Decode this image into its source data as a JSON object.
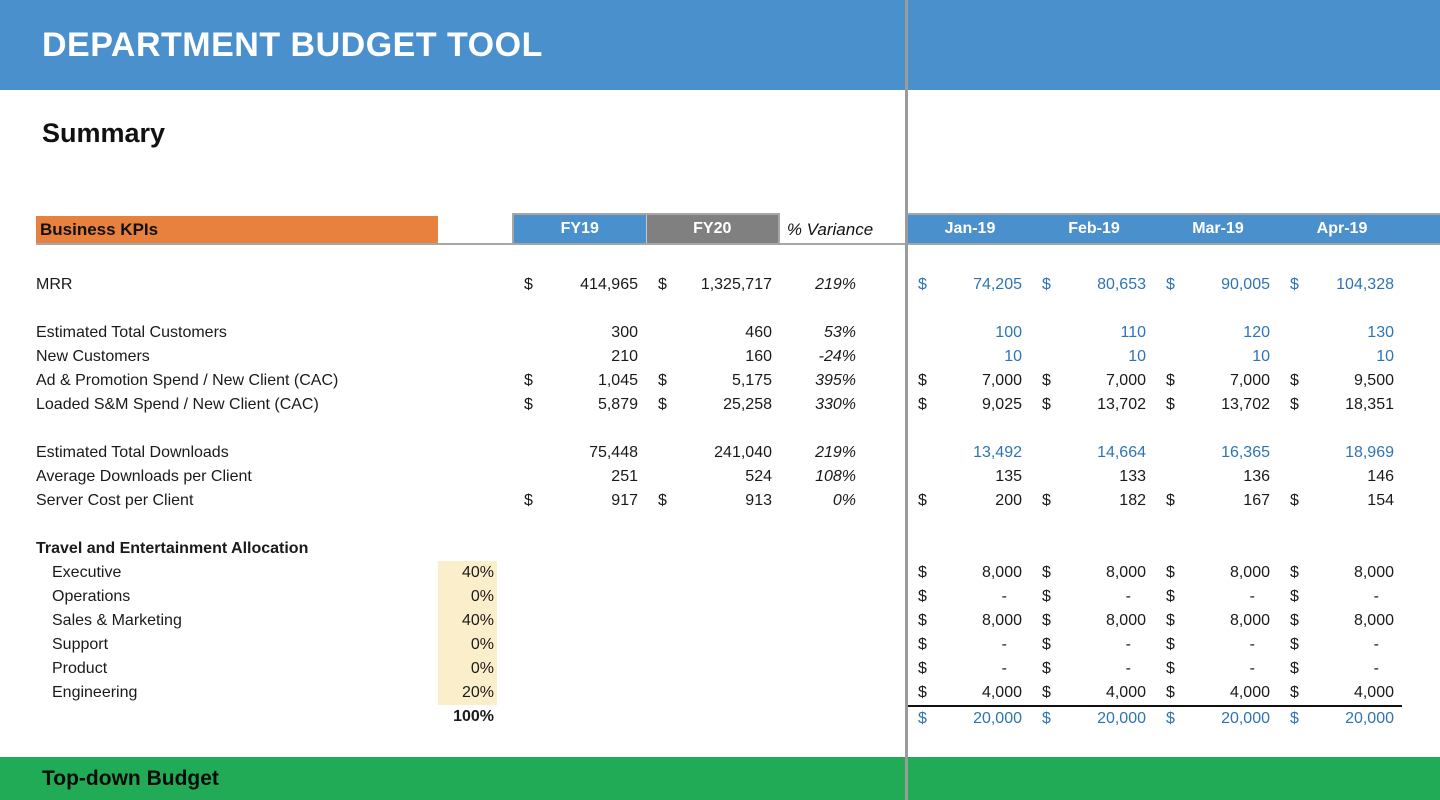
{
  "header": {
    "title": "DEPARTMENT BUDGET TOOL"
  },
  "summary": {
    "title": "Summary"
  },
  "footer": {
    "title": "Top-down Budget"
  },
  "colors": {
    "header_blue": "#4a90cd",
    "section_orange": "#e8813d",
    "fy20_gray": "#808080",
    "footer_green": "#21ab56",
    "value_blue": "#2e74b5",
    "allocation_cell_bg": "#fbeecb"
  },
  "table": {
    "section_label": "Business KPIs",
    "col_fy19": "FY19",
    "col_fy20": "FY20",
    "col_variance": "% Variance",
    "months": [
      "Jan-19",
      "Feb-19",
      "Mar-19",
      "Apr-19"
    ],
    "rows": [
      {
        "id": "mrr",
        "label": "MRR",
        "fy19": [
          "$",
          "414,965"
        ],
        "fy20": [
          "$",
          "1,325,717"
        ],
        "variance": "219%",
        "months": [
          [
            "$",
            "74,205"
          ],
          [
            "$",
            "80,653"
          ],
          [
            "$",
            "90,005"
          ],
          [
            "$",
            "104,328"
          ]
        ],
        "month_color": "blue"
      },
      {
        "id": "estimated-total-customers",
        "label": "Estimated Total Customers",
        "gap_before": true,
        "fy19": [
          "",
          "300"
        ],
        "fy20": [
          "",
          "460"
        ],
        "variance": "53%",
        "months": [
          [
            "",
            "100"
          ],
          [
            "",
            "110"
          ],
          [
            "",
            "120"
          ],
          [
            "",
            "130"
          ]
        ],
        "month_color": "blue"
      },
      {
        "id": "new-customers",
        "label": "New Customers",
        "fy19": [
          "",
          "210"
        ],
        "fy20": [
          "",
          "160"
        ],
        "variance": "-24%",
        "months": [
          [
            "",
            "10"
          ],
          [
            "",
            "10"
          ],
          [
            "",
            "10"
          ],
          [
            "",
            "10"
          ]
        ],
        "month_color": "blue"
      },
      {
        "id": "ad-promotion-spend-cac",
        "label": "Ad & Promotion Spend / New Client (CAC)",
        "fy19": [
          "$",
          "1,045"
        ],
        "fy20": [
          "$",
          "5,175"
        ],
        "variance": "395%",
        "months": [
          [
            "$",
            "7,000"
          ],
          [
            "$",
            "7,000"
          ],
          [
            "$",
            "7,000"
          ],
          [
            "$",
            "9,500"
          ]
        ],
        "month_color": "black"
      },
      {
        "id": "loaded-sm-spend-cac",
        "label": "Loaded S&M Spend / New Client (CAC)",
        "fy19": [
          "$",
          "5,879"
        ],
        "fy20": [
          "$",
          "25,258"
        ],
        "variance": "330%",
        "months": [
          [
            "$",
            "9,025"
          ],
          [
            "$",
            "13,702"
          ],
          [
            "$",
            "13,702"
          ],
          [
            "$",
            "18,351"
          ]
        ],
        "month_color": "black"
      },
      {
        "id": "estimated-total-downloads",
        "label": "Estimated Total Downloads",
        "gap_before": true,
        "fy19": [
          "",
          "75,448"
        ],
        "fy20": [
          "",
          "241,040"
        ],
        "variance": "219%",
        "months": [
          [
            "",
            "13,492"
          ],
          [
            "",
            "14,664"
          ],
          [
            "",
            "16,365"
          ],
          [
            "",
            "18,969"
          ]
        ],
        "month_color": "blue"
      },
      {
        "id": "average-downloads-per-client",
        "label": "Average Downloads per Client",
        "fy19": [
          "",
          "251"
        ],
        "fy20": [
          "",
          "524"
        ],
        "variance": "108%",
        "months": [
          [
            "",
            "135"
          ],
          [
            "",
            "133"
          ],
          [
            "",
            "136"
          ],
          [
            "",
            "146"
          ]
        ],
        "month_color": "black"
      },
      {
        "id": "server-cost-per-client",
        "label": "Server Cost per Client",
        "fy19": [
          "$",
          "917"
        ],
        "fy20": [
          "$",
          "913"
        ],
        "variance": "0%",
        "months": [
          [
            "$",
            "200"
          ],
          [
            "$",
            "182"
          ],
          [
            "$",
            "167"
          ],
          [
            "$",
            "154"
          ]
        ],
        "month_color": "black"
      },
      {
        "id": "te-allocation-header",
        "label": "Travel and Entertainment Allocation",
        "gap_before": true,
        "bold_label": true
      },
      {
        "id": "alloc-executive",
        "label": "Executive",
        "indent": true,
        "alloc": "40%",
        "alloc_bg": true,
        "months": [
          [
            "$",
            "8,000"
          ],
          [
            "$",
            "8,000"
          ],
          [
            "$",
            "8,000"
          ],
          [
            "$",
            "8,000"
          ]
        ],
        "month_color": "black"
      },
      {
        "id": "alloc-operations",
        "label": "Operations",
        "indent": true,
        "alloc": "0%",
        "alloc_bg": true,
        "months": [
          [
            "$",
            "-"
          ],
          [
            "$",
            "-"
          ],
          [
            "$",
            "-"
          ],
          [
            "$",
            "-"
          ]
        ],
        "month_color": "black"
      },
      {
        "id": "alloc-sales-marketing",
        "label": "Sales & Marketing",
        "indent": true,
        "alloc": "40%",
        "alloc_bg": true,
        "months": [
          [
            "$",
            "8,000"
          ],
          [
            "$",
            "8,000"
          ],
          [
            "$",
            "8,000"
          ],
          [
            "$",
            "8,000"
          ]
        ],
        "month_color": "black"
      },
      {
        "id": "alloc-support",
        "label": "Support",
        "indent": true,
        "alloc": "0%",
        "alloc_bg": true,
        "months": [
          [
            "$",
            "-"
          ],
          [
            "$",
            "-"
          ],
          [
            "$",
            "-"
          ],
          [
            "$",
            "-"
          ]
        ],
        "month_color": "black"
      },
      {
        "id": "alloc-product",
        "label": "Product",
        "indent": true,
        "alloc": "0%",
        "alloc_bg": true,
        "months": [
          [
            "$",
            "-"
          ],
          [
            "$",
            "-"
          ],
          [
            "$",
            "-"
          ],
          [
            "$",
            "-"
          ]
        ],
        "month_color": "black"
      },
      {
        "id": "alloc-engineering",
        "label": "Engineering",
        "indent": true,
        "alloc": "20%",
        "alloc_bg": true,
        "months": [
          [
            "$",
            "4,000"
          ],
          [
            "$",
            "4,000"
          ],
          [
            "$",
            "4,000"
          ],
          [
            "$",
            "4,000"
          ]
        ],
        "month_color": "black"
      },
      {
        "id": "alloc-total",
        "label": "",
        "alloc": "100%",
        "alloc_bold": true,
        "total_line": true,
        "months": [
          [
            "$",
            "20,000"
          ],
          [
            "$",
            "20,000"
          ],
          [
            "$",
            "20,000"
          ],
          [
            "$",
            "20,000"
          ]
        ],
        "month_color": "blue"
      }
    ]
  }
}
